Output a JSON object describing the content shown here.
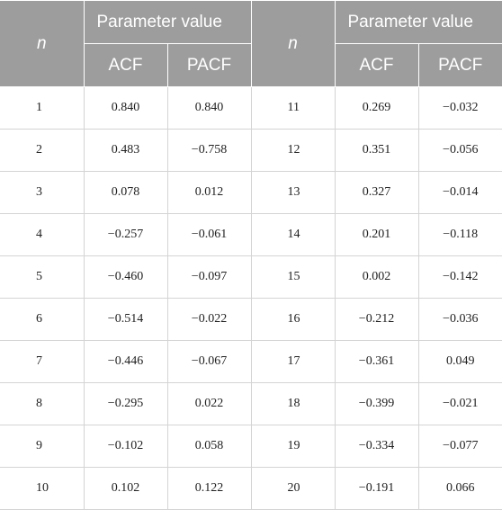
{
  "table": {
    "header": {
      "n": "n",
      "group": "Parameter value",
      "sub": [
        "ACF",
        "PACF"
      ]
    },
    "rows": [
      [
        "1",
        "0.840",
        "0.840",
        "11",
        "0.269",
        "−0.032"
      ],
      [
        "2",
        "0.483",
        "−0.758",
        "12",
        "0.351",
        "−0.056"
      ],
      [
        "3",
        "0.078",
        "0.012",
        "13",
        "0.327",
        "−0.014"
      ],
      [
        "4",
        "−0.257",
        "−0.061",
        "14",
        "0.201",
        "−0.118"
      ],
      [
        "5",
        "−0.460",
        "−0.097",
        "15",
        "0.002",
        "−0.142"
      ],
      [
        "6",
        "−0.514",
        "−0.022",
        "16",
        "−0.212",
        "−0.036"
      ],
      [
        "7",
        "−0.446",
        "−0.067",
        "17",
        "−0.361",
        "0.049"
      ],
      [
        "8",
        "−0.295",
        "0.022",
        "18",
        "−0.399",
        "−0.021"
      ],
      [
        "9",
        "−0.102",
        "0.058",
        "19",
        "−0.334",
        "−0.077"
      ],
      [
        "10",
        "0.102",
        "0.122",
        "20",
        "−0.191",
        "0.066"
      ]
    ]
  }
}
